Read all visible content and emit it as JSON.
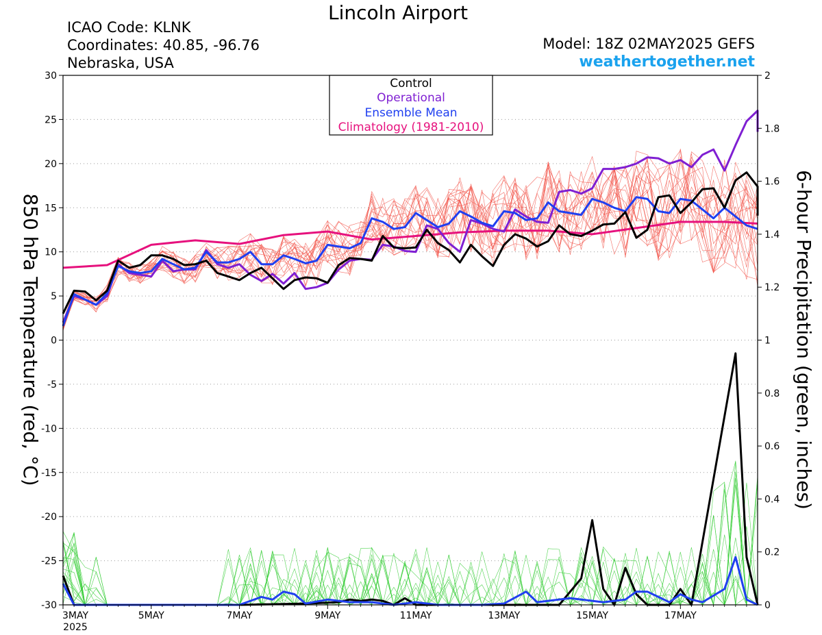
{
  "header": {
    "title": "Lincoln Airport",
    "icao": "ICAO Code: KLNK",
    "coords": "Coordinates: 40.85, -96.76",
    "region": "Nebraska, USA",
    "model": "Model: 18Z 02MAY2025 GEFS",
    "site": "weathertogether.net"
  },
  "colors": {
    "control": "#000000",
    "operational": "#7f1fd2",
    "ensemble_mean": "#1f3ff0",
    "climatology": "#e6117d",
    "members_temp": "#f2554a",
    "members_precip": "#32cc32",
    "site": "#1aa2ee"
  },
  "chart_data": {
    "type": "line",
    "title": "Lincoln Airport",
    "ylabel_left": "850 hPa Temperature (red, °C)",
    "ylabel_right": "6-hour Precipitation (green, inches)",
    "ylim_left": [
      -30,
      30
    ],
    "ylim_right": [
      0,
      2
    ],
    "left_ticks": [
      "30",
      "25",
      "20",
      "15",
      "10",
      "5",
      "0",
      "-5",
      "-10",
      "-15",
      "-20",
      "-25",
      "-30"
    ],
    "right_ticks": [
      "2",
      "1.8",
      "1.6",
      "1.4",
      "1.2",
      "1",
      "0.8",
      "0.6",
      "0.4",
      "0.2",
      "0"
    ],
    "x_ticks": [
      "3MAY",
      "5MAY",
      "7MAY",
      "9MAY",
      "11MAY",
      "13MAY",
      "15MAY",
      "17MAY"
    ],
    "x_tick_days": [
      0,
      2,
      4,
      6,
      8,
      10,
      12,
      14
    ],
    "x_year_label": "2025",
    "x_range_days": [
      0,
      15.75
    ],
    "grid": true,
    "legend_position": "top-center",
    "legend": [
      "Control",
      "Operational",
      "Ensemble Mean",
      "Climatology (1981-2010)"
    ],
    "temperature": {
      "control": [
        [
          0,
          3
        ],
        [
          0.25,
          5.6
        ],
        [
          0.5,
          5.5
        ],
        [
          0.75,
          4.5
        ],
        [
          1,
          5.6
        ],
        [
          1.25,
          9
        ],
        [
          1.5,
          8.2
        ],
        [
          1.75,
          8.5
        ],
        [
          2,
          9.6
        ],
        [
          2.25,
          9.6
        ],
        [
          2.5,
          9.2
        ],
        [
          2.75,
          8.5
        ],
        [
          3,
          8.6
        ],
        [
          3.25,
          9
        ],
        [
          3.5,
          7.6
        ],
        [
          3.75,
          7.2
        ],
        [
          4,
          6.8
        ],
        [
          4.25,
          7.6
        ],
        [
          4.5,
          8.2
        ],
        [
          4.75,
          7
        ],
        [
          5,
          5.8
        ],
        [
          5.25,
          6.8
        ],
        [
          5.5,
          7.1
        ],
        [
          5.75,
          7
        ],
        [
          6,
          6.5
        ],
        [
          6.25,
          8.5
        ],
        [
          6.5,
          9.3
        ],
        [
          6.75,
          9.2
        ],
        [
          7,
          9
        ],
        [
          7.25,
          11.8
        ],
        [
          7.5,
          10.5
        ],
        [
          7.75,
          10.4
        ],
        [
          8,
          10.5
        ],
        [
          8.25,
          12.5
        ],
        [
          8.5,
          11
        ],
        [
          8.75,
          10.2
        ],
        [
          9,
          8.8
        ],
        [
          9.25,
          10.8
        ],
        [
          9.5,
          9.5
        ],
        [
          9.75,
          8.4
        ],
        [
          10,
          10.8
        ],
        [
          10.25,
          12
        ],
        [
          10.5,
          11.5
        ],
        [
          10.75,
          10.6
        ],
        [
          11,
          11.2
        ],
        [
          11.25,
          13
        ],
        [
          11.5,
          12
        ],
        [
          11.75,
          11.8
        ],
        [
          12,
          12.4
        ],
        [
          12.25,
          13.1
        ],
        [
          12.5,
          13.2
        ],
        [
          12.75,
          14.5
        ],
        [
          13,
          11.6
        ],
        [
          13.25,
          12.5
        ],
        [
          13.5,
          16.2
        ],
        [
          13.75,
          16.4
        ],
        [
          14,
          14.4
        ],
        [
          14.25,
          15.6
        ],
        [
          14.5,
          17.1
        ],
        [
          14.75,
          17.2
        ],
        [
          15,
          15
        ],
        [
          15.25,
          18.1
        ],
        [
          15.5,
          19
        ],
        [
          15.75,
          17.4
        ],
        [
          15.95,
          14.1
        ]
      ],
      "operational": [
        [
          0,
          2
        ],
        [
          0.25,
          5
        ],
        [
          0.5,
          4.6
        ],
        [
          0.75,
          4
        ],
        [
          1,
          5
        ],
        [
          1.25,
          8.6
        ],
        [
          1.5,
          7.6
        ],
        [
          1.75,
          7.4
        ],
        [
          2,
          7.2
        ],
        [
          2.25,
          9
        ],
        [
          2.5,
          7.8
        ],
        [
          2.75,
          8
        ],
        [
          3,
          8
        ],
        [
          3.25,
          10.2
        ],
        [
          3.5,
          8.6
        ],
        [
          3.75,
          8.2
        ],
        [
          4,
          8.6
        ],
        [
          4.25,
          7.4
        ],
        [
          4.5,
          6.7
        ],
        [
          4.75,
          7.5
        ],
        [
          5,
          6.4
        ],
        [
          5.25,
          7.6
        ],
        [
          5.5,
          5.8
        ],
        [
          5.75,
          6
        ],
        [
          6,
          6.5
        ],
        [
          6.25,
          8
        ],
        [
          6.5,
          9
        ],
        [
          6.75,
          9.2
        ],
        [
          7,
          9.1
        ],
        [
          7.25,
          10.8
        ],
        [
          7.5,
          10.6
        ],
        [
          7.75,
          10.1
        ],
        [
          8,
          10
        ],
        [
          8.25,
          13
        ],
        [
          8.5,
          12.6
        ],
        [
          8.75,
          11
        ],
        [
          9,
          10
        ],
        [
          9.25,
          13.6
        ],
        [
          9.5,
          13.2
        ],
        [
          9.75,
          12.6
        ],
        [
          10,
          12.3
        ],
        [
          10.25,
          14.8
        ],
        [
          10.5,
          14
        ],
        [
          10.75,
          13.4
        ],
        [
          11,
          13.3
        ],
        [
          11.25,
          16.8
        ],
        [
          11.5,
          17
        ],
        [
          11.75,
          16.6
        ],
        [
          12,
          17.2
        ],
        [
          12.25,
          19.4
        ],
        [
          12.5,
          19.4
        ],
        [
          12.75,
          19.6
        ],
        [
          13,
          20
        ],
        [
          13.25,
          20.7
        ],
        [
          13.5,
          20.6
        ],
        [
          13.75,
          20
        ],
        [
          14,
          20.4
        ],
        [
          14.25,
          19.6
        ],
        [
          14.5,
          21
        ],
        [
          14.75,
          21.6
        ],
        [
          15,
          19.2
        ],
        [
          15.25,
          22.1
        ],
        [
          15.5,
          24.8
        ],
        [
          15.75,
          26
        ],
        [
          15.95,
          23.6
        ]
      ],
      "ensemble_mean": [
        [
          0,
          1.6
        ],
        [
          0.25,
          5.2
        ],
        [
          0.5,
          4.6
        ],
        [
          0.75,
          4
        ],
        [
          1,
          5.3
        ],
        [
          1.25,
          8.4
        ],
        [
          1.5,
          7.8
        ],
        [
          1.75,
          7.6
        ],
        [
          2,
          7.8
        ],
        [
          2.25,
          9.2
        ],
        [
          2.5,
          8.6
        ],
        [
          2.75,
          8
        ],
        [
          3,
          8.2
        ],
        [
          3.25,
          10
        ],
        [
          3.5,
          8.8
        ],
        [
          3.75,
          8.8
        ],
        [
          4,
          9.2
        ],
        [
          4.25,
          10
        ],
        [
          4.5,
          8.6
        ],
        [
          4.75,
          8.6
        ],
        [
          5,
          9.6
        ],
        [
          5.25,
          9.2
        ],
        [
          5.5,
          8.7
        ],
        [
          5.75,
          9
        ],
        [
          6,
          10.8
        ],
        [
          6.25,
          10.6
        ],
        [
          6.5,
          10.4
        ],
        [
          6.75,
          11
        ],
        [
          7,
          13.8
        ],
        [
          7.25,
          13.4
        ],
        [
          7.5,
          12.6
        ],
        [
          7.75,
          12.8
        ],
        [
          8,
          14.4
        ],
        [
          8.25,
          13.6
        ],
        [
          8.5,
          12.8
        ],
        [
          8.75,
          13.2
        ],
        [
          9,
          14.6
        ],
        [
          9.25,
          14
        ],
        [
          9.5,
          13.3
        ],
        [
          9.75,
          12.9
        ],
        [
          10,
          14.6
        ],
        [
          10.25,
          14.4
        ],
        [
          10.5,
          13.6
        ],
        [
          10.75,
          13.8
        ],
        [
          11,
          15.6
        ],
        [
          11.25,
          14.6
        ],
        [
          11.5,
          14.4
        ],
        [
          11.75,
          14.2
        ],
        [
          12,
          16
        ],
        [
          12.25,
          15.6
        ],
        [
          12.5,
          15
        ],
        [
          12.75,
          14.6
        ],
        [
          13,
          16.2
        ],
        [
          13.25,
          16
        ],
        [
          13.5,
          14.6
        ],
        [
          13.75,
          14.4
        ],
        [
          14,
          16
        ],
        [
          14.25,
          15.8
        ],
        [
          14.5,
          14.8
        ],
        [
          14.75,
          13.8
        ],
        [
          15,
          15
        ],
        [
          15.25,
          14
        ],
        [
          15.5,
          13
        ],
        [
          15.75,
          12.6
        ]
      ],
      "climatology": [
        [
          0,
          8.2
        ],
        [
          1,
          8.5
        ],
        [
          2,
          10.8
        ],
        [
          3,
          11.3
        ],
        [
          4,
          10.9
        ],
        [
          5,
          11.9
        ],
        [
          6,
          12.3
        ],
        [
          7,
          11.4
        ],
        [
          8,
          11.8
        ],
        [
          9,
          12.2
        ],
        [
          10,
          12.4
        ],
        [
          11,
          12.4
        ],
        [
          12,
          12
        ],
        [
          13,
          12.7
        ],
        [
          14,
          13.4
        ],
        [
          15,
          13.4
        ],
        [
          15.95,
          13.2
        ]
      ]
    },
    "precip": {
      "control": [
        [
          0,
          0.11
        ],
        [
          0.25,
          0
        ],
        [
          4,
          0
        ],
        [
          5.5,
          0.005
        ],
        [
          6.25,
          0.01
        ],
        [
          6.5,
          0.02
        ],
        [
          6.75,
          0.015
        ],
        [
          7,
          0.02
        ],
        [
          7.25,
          0.015
        ],
        [
          7.5,
          0
        ],
        [
          7.75,
          0.025
        ],
        [
          8,
          0
        ],
        [
          10,
          0
        ],
        [
          11.25,
          0
        ],
        [
          11.75,
          0.1
        ],
        [
          12,
          0.32
        ],
        [
          12.25,
          0.06
        ],
        [
          12.5,
          0
        ],
        [
          12.75,
          0.14
        ],
        [
          13,
          0.04
        ],
        [
          13.25,
          0
        ],
        [
          13.75,
          0
        ],
        [
          14,
          0.06
        ],
        [
          14.25,
          0
        ],
        [
          15.25,
          0.95
        ],
        [
          15.5,
          0.18
        ],
        [
          15.75,
          0
        ]
      ],
      "ensemble_mean": [
        [
          0,
          0.08
        ],
        [
          0.25,
          0
        ],
        [
          4,
          0
        ],
        [
          4.5,
          0.03
        ],
        [
          4.75,
          0.02
        ],
        [
          5,
          0.05
        ],
        [
          5.25,
          0.04
        ],
        [
          5.5,
          0.005
        ],
        [
          6,
          0.02
        ],
        [
          6.5,
          0.01
        ],
        [
          7,
          0.01
        ],
        [
          7.5,
          0
        ],
        [
          8,
          0.01
        ],
        [
          8.5,
          0
        ],
        [
          9.5,
          0
        ],
        [
          10,
          0.005
        ],
        [
          10.5,
          0.05
        ],
        [
          10.75,
          0.01
        ],
        [
          11.5,
          0.025
        ],
        [
          12.25,
          0.01
        ],
        [
          12.75,
          0.02
        ],
        [
          13,
          0.05
        ],
        [
          13.25,
          0.05
        ],
        [
          13.5,
          0.03
        ],
        [
          13.75,
          0.01
        ],
        [
          14,
          0.04
        ],
        [
          14.25,
          0.02
        ],
        [
          14.5,
          0.01
        ],
        [
          15,
          0.06
        ],
        [
          15.25,
          0.18
        ],
        [
          15.5,
          0.02
        ],
        [
          15.75,
          0
        ]
      ]
    }
  }
}
